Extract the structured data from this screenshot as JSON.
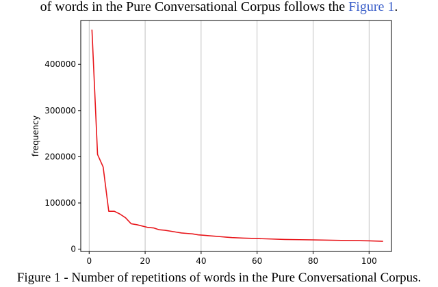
{
  "document": {
    "top_text_before": "of words in the Pure Conversational Corpus follows the ",
    "top_text_link": "Figure 1",
    "top_text_after": ".",
    "caption": "Figure 1 - Number of repetitions of words in the Pure Conversational Corpus."
  },
  "chart_data": {
    "type": "line",
    "title": "",
    "xlabel": "",
    "ylabel": "frequency",
    "xlim": [
      -3,
      108
    ],
    "ylim": [
      -5000,
      495000
    ],
    "xticks": [
      0,
      20,
      40,
      60,
      80,
      100
    ],
    "yticks": [
      0,
      100000,
      200000,
      300000,
      400000
    ],
    "grid": "x-only",
    "line_color": "#e8161b",
    "series": [
      {
        "x": [
          1,
          3,
          5,
          7,
          9,
          11,
          13,
          15,
          17,
          19,
          21,
          23,
          25,
          27,
          29,
          31,
          33,
          35,
          37,
          39,
          41,
          43,
          45,
          47,
          49,
          51,
          53,
          55,
          60,
          65,
          70,
          75,
          80,
          85,
          90,
          95,
          100,
          105
        ],
        "y": [
          475000,
          205000,
          178000,
          82000,
          82000,
          76000,
          68000,
          55000,
          53000,
          50000,
          47000,
          46000,
          42000,
          41000,
          39000,
          37000,
          35000,
          34000,
          33000,
          31000,
          30000,
          29000,
          28000,
          27000,
          26000,
          25000,
          24500,
          24000,
          23000,
          22000,
          21000,
          20500,
          20000,
          19500,
          19000,
          18500,
          18000,
          17000
        ]
      }
    ]
  }
}
